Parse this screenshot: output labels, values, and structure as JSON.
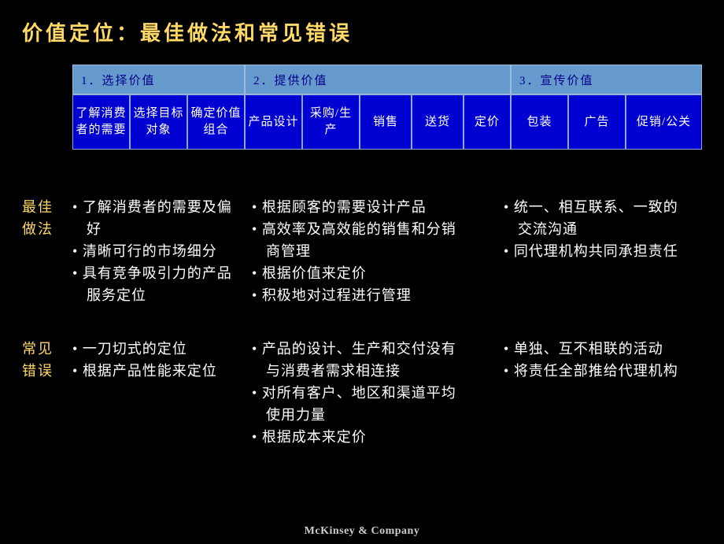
{
  "title": "价值定位：最佳做法和常见错误",
  "phases": {
    "labels": [
      "1．选择价值",
      "2．提供价值",
      "3．宣传价值"
    ],
    "widths": [
      219,
      338,
      243
    ],
    "top_bg": "#6699cc",
    "top_text_color": "#00008b",
    "top_border": "#9bbbe0"
  },
  "subs": {
    "items": [
      "了解消费者的需要",
      "选择目标对象",
      "确定价值组合",
      "产品设计",
      "采购/生产",
      "销售",
      "送货",
      "定价",
      "包装",
      "广告",
      "促销/公关"
    ],
    "widths": [
      73,
      73,
      73,
      73,
      73,
      66,
      66,
      60,
      73,
      73,
      97
    ],
    "bg": "#0000d0",
    "border": "#88aadd"
  },
  "rows": {
    "best": {
      "label": "最佳\n做法",
      "cols": [
        [
          "了解消费者的需要及偏好",
          "清晰可行的市场细分",
          "具有竞争吸引力的产品服务定位"
        ],
        [
          "根据顾客的需要设计产品",
          "高效率及高效能的销售和分销商管理",
          "根据价值来定价",
          "积极地对过程进行管理"
        ],
        [
          "统一、相互联系、一致的交流沟通",
          "同代理机构共同承担责任"
        ]
      ]
    },
    "mistakes": {
      "label": "常见\n错误",
      "cols": [
        [
          "一刀切式的定位",
          "根据产品性能来定位"
        ],
        [
          "产品的设计、生产和交付没有与消费者需求相连接",
          "对所有客户、地区和渠道平均使用力量",
          "根据成本来定价"
        ],
        [
          "单独、互不相联的活动",
          "将责任全部推给代理机构"
        ]
      ]
    }
  },
  "colors": {
    "accent": "#ffd966",
    "bg": "#000000",
    "text": "#ffffff"
  },
  "footer": "McKinsey & Company"
}
